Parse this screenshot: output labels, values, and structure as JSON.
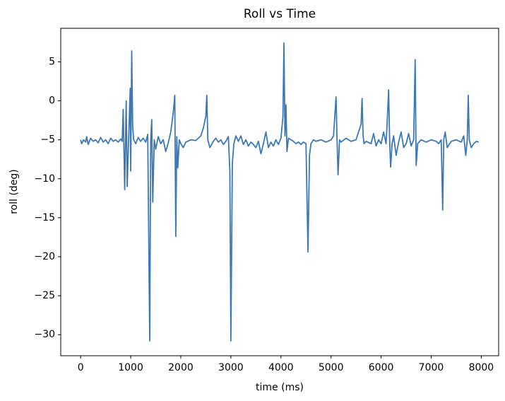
{
  "chart_data": {
    "type": "line",
    "title": "Roll vs Time",
    "x_label": "time (ms)",
    "y_label": "roll (deg)",
    "color": "#3b78b5",
    "x": [
      0,
      20,
      60,
      100,
      120,
      150,
      200,
      250,
      300,
      350,
      400,
      450,
      500,
      550,
      600,
      650,
      700,
      750,
      800,
      830,
      850,
      880,
      910,
      930,
      960,
      990,
      1000,
      1020,
      1040,
      1060,
      1100,
      1150,
      1200,
      1250,
      1300,
      1340,
      1380,
      1400,
      1420,
      1440,
      1470,
      1500,
      1550,
      1600,
      1650,
      1700,
      1750,
      1800,
      1850,
      1880,
      1900,
      1920,
      1940,
      1970,
      2000,
      2050,
      2100,
      2200,
      2300,
      2400,
      2450,
      2500,
      2520,
      2540,
      2580,
      2650,
      2700,
      2750,
      2800,
      2850,
      2900,
      2950,
      2980,
      3000,
      3030,
      3060,
      3100,
      3150,
      3200,
      3250,
      3300,
      3350,
      3400,
      3450,
      3500,
      3550,
      3600,
      3650,
      3700,
      3750,
      3800,
      3850,
      3900,
      3950,
      4000,
      4040,
      4060,
      4080,
      4100,
      4120,
      4150,
      4200,
      4250,
      4300,
      4350,
      4400,
      4450,
      4500,
      4540,
      4570,
      4600,
      4650,
      4700,
      4800,
      4900,
      5000,
      5050,
      5100,
      5120,
      5140,
      5170,
      5200,
      5300,
      5400,
      5500,
      5550,
      5600,
      5620,
      5640,
      5660,
      5700,
      5800,
      5850,
      5900,
      5950,
      6000,
      6050,
      6100,
      6130,
      6150,
      6170,
      6190,
      6220,
      6250,
      6300,
      6350,
      6400,
      6450,
      6500,
      6550,
      6600,
      6650,
      6680,
      6700,
      6730,
      6800,
      6900,
      7000,
      7100,
      7150,
      7200,
      7230,
      7250,
      7280,
      7320,
      7400,
      7500,
      7600,
      7650,
      7690,
      7720,
      7740,
      7760,
      7800,
      7850,
      7900,
      7950
    ],
    "values": [
      -5,
      -5.5,
      -5,
      -5.3,
      -4.6,
      -5.6,
      -4.8,
      -5.2,
      -5,
      -5.4,
      -4.7,
      -5.3,
      -5,
      -5.5,
      -4.8,
      -5.2,
      -5,
      -5.3,
      -4.9,
      -5.2,
      -1.1,
      -11.4,
      0,
      -11,
      -4.6,
      1.6,
      -9,
      6.4,
      -3.4,
      -5,
      -5.5,
      -4.7,
      -5.2,
      -4.8,
      -5.3,
      -4.3,
      -30.8,
      -5,
      -2.4,
      -13,
      -5,
      -6.2,
      -4.6,
      -5.5,
      -5,
      -6.5,
      -5.4,
      -4,
      -1.5,
      0.7,
      -17.4,
      -4.6,
      -8.6,
      -5,
      -5.5,
      -6,
      -5.3,
      -5,
      -5.1,
      -4.5,
      -3.5,
      -2,
      0.7,
      -5,
      -6,
      -5.2,
      -4.8,
      -5.3,
      -5,
      -5.6,
      -5.2,
      -4.6,
      -9,
      -30.8,
      -8,
      -5.5,
      -4.5,
      -5.2,
      -4.5,
      -5.6,
      -5,
      -5.8,
      -5.3,
      -5.6,
      -6,
      -5.2,
      -6.8,
      -5.5,
      -4,
      -6,
      -5.3,
      -5.8,
      -5,
      -5.6,
      -4.8,
      -2,
      7.4,
      -4.5,
      -0.5,
      -6.5,
      -4.8,
      -5,
      -5.2,
      -5.5,
      -5.3,
      -5.6,
      -5.3,
      -5.5,
      -19.4,
      -7,
      -5.5,
      -5,
      -5.2,
      -5,
      -5.3,
      -5,
      -4.5,
      0.5,
      -5,
      -9.5,
      -5,
      -5.3,
      -4.8,
      -5.2,
      -5,
      -4,
      -3,
      0.3,
      -4.5,
      -5.5,
      -5.2,
      -5.5,
      -4.2,
      -5.8,
      -5,
      -5.5,
      -4,
      -5.5,
      -1.5,
      1.4,
      -5,
      -8.5,
      -5.5,
      -4.5,
      -7,
      -5.3,
      -4,
      -6,
      -5.5,
      -4.2,
      -5.8,
      -5,
      5.3,
      -8.3,
      -5.5,
      -5,
      -5.3,
      -5,
      -5.2,
      -5.5,
      -5,
      -14,
      -5,
      -4,
      -6,
      -5.2,
      -5,
      -5.3,
      -4.5,
      -7,
      -5,
      0.7,
      -5,
      -6,
      -5.5,
      -5.2,
      -5.3
    ],
    "xlim": [
      -397,
      8347
    ],
    "ylim": [
      -32.7,
      9.3
    ],
    "xticks": [
      0,
      1000,
      2000,
      3000,
      4000,
      5000,
      6000,
      7000,
      8000
    ],
    "yticks": [
      {
        "value": -30,
        "label": "−30"
      },
      {
        "value": -25,
        "label": "−25"
      },
      {
        "value": -20,
        "label": "−20"
      },
      {
        "value": -15,
        "label": "−15"
      },
      {
        "value": -10,
        "label": "−10"
      },
      {
        "value": -5,
        "label": "−5"
      },
      0,
      5
    ]
  }
}
